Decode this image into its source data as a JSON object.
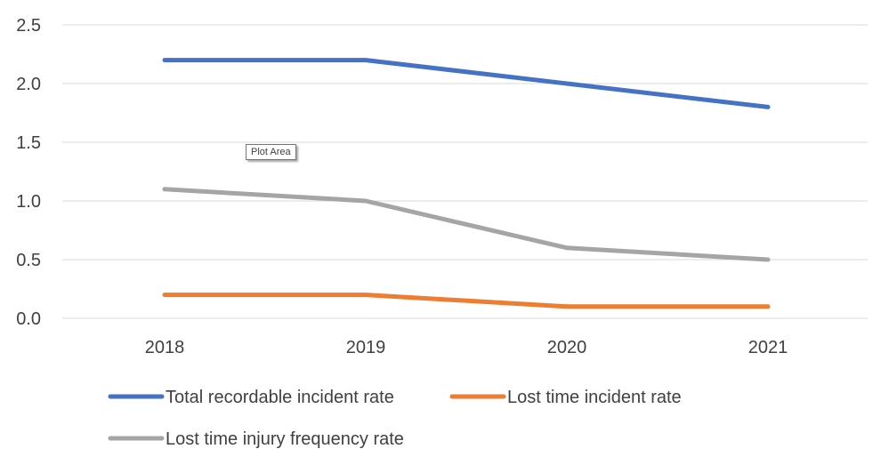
{
  "chart_data": {
    "type": "line",
    "categories": [
      "2018",
      "2019",
      "2020",
      "2021"
    ],
    "series": [
      {
        "name": "Total recordable incident rate",
        "values": [
          2.2,
          2.2,
          2.0,
          1.8
        ],
        "color": "#4472C4"
      },
      {
        "name": "Lost time incident rate",
        "values": [
          0.2,
          0.2,
          0.1,
          0.1
        ],
        "color": "#ED7D31"
      },
      {
        "name": "Lost time injury frequency rate",
        "values": [
          1.1,
          1.0,
          0.6,
          0.5
        ],
        "color": "#A5A5A5"
      }
    ],
    "yticks": [
      "0.0",
      "0.5",
      "1.0",
      "1.5",
      "2.0",
      "2.5"
    ],
    "ylim": [
      0,
      2.5
    ],
    "grid": true,
    "legend_position": "bottom"
  },
  "tooltip": {
    "text": "Plot Area"
  }
}
